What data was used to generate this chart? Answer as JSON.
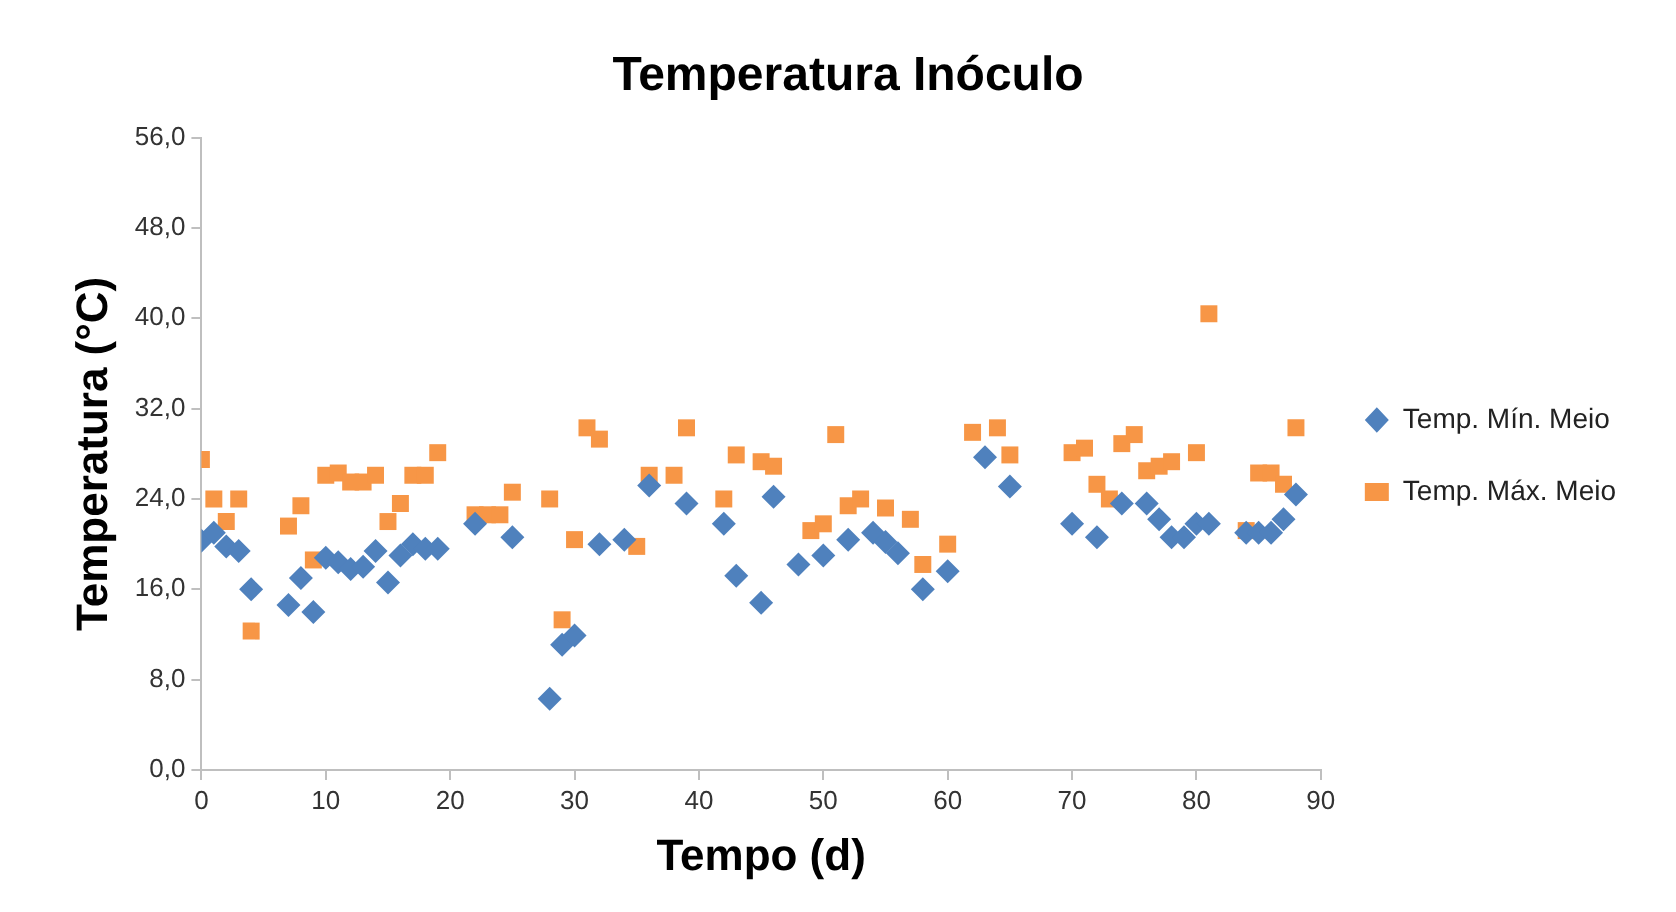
{
  "chart_data": {
    "type": "scatter",
    "title": "Temperatura Inóculo",
    "xlabel": "Tempo (d)",
    "ylabel": "Temperatura (°C)",
    "xlim": [
      0,
      90
    ],
    "xticks": [
      0,
      10,
      20,
      30,
      40,
      50,
      60,
      70,
      80,
      90
    ],
    "ylim": [
      0,
      56
    ],
    "yticks": [
      {
        "value": 0,
        "label": "0,0"
      },
      {
        "value": 8,
        "label": "8,0"
      },
      {
        "value": 16,
        "label": "16,0"
      },
      {
        "value": 24,
        "label": "24,0"
      },
      {
        "value": 32,
        "label": "32,0"
      },
      {
        "value": 40,
        "label": "40,0"
      },
      {
        "value": 48,
        "label": "48,0"
      },
      {
        "value": 56,
        "label": "56,0"
      }
    ],
    "grid": false,
    "legend": "right",
    "series": [
      {
        "name": "Temp. Mín. Meio",
        "color": "#4f81bd",
        "marker": "diamond",
        "x": [
          0,
          1,
          2,
          3,
          4,
          7,
          8,
          9,
          10,
          11,
          12,
          13,
          14,
          15,
          16,
          17,
          18,
          19,
          22,
          25,
          28,
          29,
          30,
          32,
          34,
          36,
          39,
          42,
          43,
          45,
          46,
          48,
          50,
          52,
          54,
          55,
          56,
          58,
          60,
          63,
          65,
          70,
          72,
          74,
          76,
          77,
          78,
          79,
          80,
          81,
          84,
          85,
          86,
          87,
          88
        ],
        "values": [
          20.3,
          21,
          19.8,
          19.4,
          16,
          14.6,
          17,
          14,
          18.8,
          18.4,
          17.8,
          18,
          19.4,
          16.6,
          19,
          20,
          19.6,
          19.6,
          21.8,
          20.6,
          6.3,
          11.1,
          11.9,
          20,
          20.4,
          25.2,
          23.6,
          21.8,
          17.2,
          14.8,
          24.2,
          18.2,
          19,
          20.4,
          21,
          20.2,
          19.2,
          16,
          17.6,
          27.7,
          25.1,
          21.8,
          20.6,
          23.6,
          23.6,
          22.2,
          20.6,
          20.6,
          21.8,
          21.8,
          21,
          21,
          21,
          22.2,
          24.4
        ]
      },
      {
        "name": "Temp. Máx. Meio",
        "color": "#f79646",
        "marker": "square",
        "x": [
          0,
          1,
          2,
          3,
          4,
          7,
          8,
          9,
          10,
          11,
          12,
          13,
          14,
          15,
          16,
          17,
          18,
          19,
          22,
          23,
          24,
          25,
          28,
          29,
          30,
          31,
          32,
          35,
          36,
          38,
          39,
          42,
          43,
          45,
          46,
          49,
          50,
          51,
          52,
          53,
          55,
          57,
          58,
          60,
          62,
          64,
          65,
          70,
          71,
          72,
          73,
          74,
          75,
          76,
          77,
          78,
          80,
          81,
          84,
          85,
          86,
          87,
          88
        ],
        "values": [
          27.5,
          24,
          22,
          24,
          12.3,
          21.6,
          23.4,
          18.6,
          26.1,
          26.3,
          25.5,
          25.5,
          26.1,
          22,
          23.6,
          26.1,
          26.1,
          28.1,
          22.6,
          22.6,
          22.6,
          24.6,
          24,
          13.3,
          20.4,
          30.3,
          29.3,
          19.8,
          26.1,
          26.1,
          30.3,
          24,
          27.9,
          27.3,
          26.9,
          21.2,
          21.8,
          29.7,
          23.4,
          24,
          23.2,
          22.2,
          18.2,
          20,
          29.9,
          30.3,
          27.9,
          28.1,
          28.5,
          25.3,
          24,
          28.9,
          29.7,
          26.5,
          26.9,
          27.3,
          28.1,
          40.4,
          21.2,
          26.3,
          26.3,
          25.3,
          30.3
        ]
      }
    ]
  }
}
